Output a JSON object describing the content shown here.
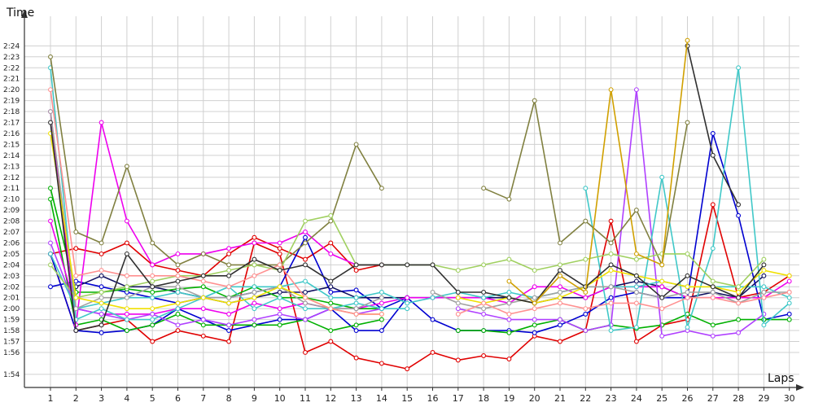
{
  "chart_data": {
    "type": "line",
    "ylabel": "Time",
    "xlabel": "Laps",
    "x": [
      1,
      2,
      3,
      4,
      5,
      6,
      7,
      8,
      9,
      10,
      11,
      12,
      13,
      14,
      15,
      16,
      17,
      18,
      19,
      20,
      21,
      22,
      23,
      24,
      25,
      26,
      27,
      28,
      29,
      30
    ],
    "x_tick_labels": [
      "1",
      "2",
      "3",
      "4",
      "5",
      "6",
      "7",
      "8",
      "9",
      "10",
      "11",
      "12",
      "13",
      "14",
      "15",
      "16",
      "17",
      "18",
      "19",
      "20",
      "21",
      "22",
      "23",
      "24",
      "25",
      "26",
      "27",
      "28",
      "29",
      "30"
    ],
    "y_tick_labels": [
      "1:54",
      "1:56",
      "1:57",
      "1:58",
      "1:59",
      "2:00",
      "2:01",
      "2:02",
      "2:03",
      "2:04",
      "2:05",
      "2:06",
      "2:07",
      "2:08",
      "2:09",
      "2:10",
      "2:11",
      "2:12",
      "2:13",
      "2:14",
      "2:15",
      "2:16",
      "2:17",
      "2:18",
      "2:19",
      "2:20",
      "2:21",
      "2:22",
      "2:23",
      "2:24"
    ],
    "y_unit": "seconds",
    "ylim": [
      113.2,
      146
    ],
    "grid": true,
    "legend": "none",
    "series": [
      {
        "color": "#e00000",
        "values": [
          125,
          118,
          118.5,
          119,
          117,
          118,
          117.5,
          117,
          126,
          125,
          116,
          117,
          115.5,
          115,
          114.5,
          116,
          115.3,
          115.7,
          115.4,
          117.5,
          117,
          118,
          128,
          117,
          118.5,
          119,
          129.5,
          121,
          121.5,
          123
        ]
      },
      {
        "color": "#e00000",
        "values": [
          125,
          125.5,
          125,
          126,
          124,
          123.5,
          123,
          125,
          126.5,
          125.5,
          124.5,
          126,
          123.5,
          124,
          null,
          null,
          null,
          null,
          null,
          null,
          null,
          null,
          null,
          null,
          null,
          null,
          null,
          null,
          null,
          null
        ]
      },
      {
        "color": "#0000d0",
        "values": [
          125,
          118,
          117.8,
          118,
          118.5,
          120,
          119,
          118,
          118.5,
          119,
          119,
          120,
          118,
          118,
          121,
          119,
          118,
          118,
          118,
          117.8,
          118.5,
          119.5,
          121,
          121.5,
          121,
          121,
          136,
          128.5,
          119,
          119.5
        ]
      },
      {
        "color": "#0000d0",
        "values": [
          122,
          122.5,
          122,
          121.5,
          121,
          120.5,
          121,
          121,
          121.5,
          122,
          126.5,
          121.5,
          121.7,
          120,
          121,
          null,
          null,
          null,
          null,
          null,
          null,
          null,
          null,
          null,
          null,
          null,
          null,
          null,
          null,
          null
        ]
      },
      {
        "color": "#101060",
        "values": [
          null,
          122,
          123,
          122,
          122,
          121.5,
          121,
          120.5,
          121,
          121.5,
          121.5,
          122,
          121,
          121,
          121,
          121,
          121,
          121,
          121,
          120.5,
          121,
          121,
          122,
          122.5,
          122,
          121,
          121.5,
          121,
          123,
          null
        ]
      },
      {
        "color": "#00b000",
        "values": [
          130,
          118.5,
          119,
          118,
          118.5,
          119.5,
          118.5,
          118.5,
          118.5,
          118.5,
          119,
          118,
          118.5,
          119,
          null,
          null,
          118,
          118,
          117.8,
          118.5,
          119,
          118,
          118.5,
          118.2,
          118.5,
          119.5,
          118.5,
          119,
          119,
          119
        ]
      },
      {
        "color": "#00b000",
        "values": [
          131,
          121.5,
          121.5,
          121.8,
          121.5,
          121.8,
          122,
          121,
          122,
          121,
          121,
          120.5,
          120,
          120,
          null,
          null,
          null,
          null,
          null,
          null,
          null,
          null,
          null,
          null,
          null,
          null,
          null,
          null,
          null,
          null
        ]
      },
      {
        "color": "#ee00ee",
        "values": [
          128,
          120,
          119.5,
          119.5,
          119.5,
          120,
          120,
          119.5,
          120.5,
          120,
          120.5,
          120,
          120,
          120.5,
          121,
          121,
          121,
          121,
          120.5,
          122,
          122,
          121,
          122,
          122,
          122,
          121,
          121,
          121,
          121,
          122.5
        ]
      },
      {
        "color": "#ee00ee",
        "values": [
          138,
          118.5,
          137,
          128,
          124,
          125,
          125,
          125.5,
          126,
          126,
          127,
          125,
          124,
          124,
          null,
          null,
          null,
          null,
          null,
          null,
          null,
          null,
          null,
          null,
          null,
          null,
          null,
          null,
          null,
          null
        ]
      },
      {
        "color": "#b040ff",
        "values": [
          126,
          120,
          119.5,
          119,
          119.5,
          118.5,
          119,
          118.5,
          119,
          119.5,
          119,
          120,
          119.5,
          120,
          null,
          null,
          120,
          119.5,
          119,
          119,
          119,
          118,
          118.5,
          140,
          117.5,
          118,
          117.5,
          117.8,
          119.5,
          null
        ]
      },
      {
        "color": "#40c8c8",
        "values": [
          142,
          119,
          120,
          119,
          119,
          120,
          121,
          122,
          120,
          121,
          120,
          120,
          120.5,
          120,
          120,
          null,
          null,
          null,
          null,
          null,
          null,
          131,
          118,
          118.3,
          132,
          118.3,
          125.5,
          142,
          118.5,
          120.5
        ]
      },
      {
        "color": "#40c8c8",
        "values": [
          125,
          120,
          120.5,
          121,
          121,
          121.5,
          121,
          122,
          122,
          122,
          122.5,
          121,
          121,
          121.5,
          120.5,
          121,
          121.5,
          121,
          121.5,
          121,
          121.5,
          122,
          122,
          122,
          122.5,
          122,
          122,
          122,
          122,
          121
        ]
      },
      {
        "color": "#808040",
        "values": [
          143,
          127,
          126,
          133,
          126,
          124,
          125,
          124,
          124,
          124,
          126,
          128,
          135,
          131,
          null,
          null,
          null,
          null,
          null,
          null,
          null,
          null,
          null,
          null,
          null,
          null,
          null,
          null,
          null,
          null
        ]
      },
      {
        "color": "#808040",
        "values": [
          null,
          null,
          null,
          null,
          null,
          null,
          null,
          null,
          null,
          null,
          null,
          null,
          null,
          null,
          null,
          null,
          null,
          131,
          130,
          139,
          126,
          128,
          126,
          129,
          124,
          137,
          null,
          null,
          null,
          null
        ]
      },
      {
        "color": "#a0a0a0",
        "values": [
          138,
          120,
          121,
          121,
          122,
          122,
          121,
          121,
          121.5,
          122,
          120.5,
          120,
          120,
          121,
          null,
          null,
          null,
          null,
          null,
          null,
          null,
          null,
          null,
          null,
          null,
          null,
          null,
          null,
          null,
          null
        ]
      },
      {
        "color": "#a0a0a0",
        "values": [
          null,
          null,
          null,
          null,
          null,
          null,
          null,
          null,
          null,
          null,
          null,
          null,
          null,
          null,
          null,
          121.5,
          120.5,
          120,
          120.5,
          121,
          121.5,
          122,
          122,
          121.5,
          121,
          121.5,
          121.5,
          120.5,
          121.5,
          121.5
        ]
      },
      {
        "color": "#a0d060",
        "values": [
          124,
          121,
          121.5,
          122,
          122.5,
          123,
          123,
          123.5,
          124,
          123.5,
          128,
          128.5,
          124,
          124,
          124,
          124,
          123.5,
          124,
          124.5,
          123.5,
          124,
          124.5,
          125,
          124.5,
          125,
          125,
          122.5,
          122,
          124.5,
          null
        ]
      },
      {
        "color": "#f0e000",
        "values": [
          136,
          121,
          120.5,
          120,
          120,
          120.5,
          121,
          120.5,
          121,
          122,
          121,
          120,
          119.5,
          119.5,
          null,
          null,
          null,
          null,
          null,
          null,
          null,
          null,
          null,
          null,
          null,
          null,
          null,
          null,
          null,
          null
        ]
      },
      {
        "color": "#f0e000",
        "values": [
          null,
          null,
          null,
          null,
          null,
          null,
          null,
          null,
          null,
          null,
          null,
          null,
          null,
          null,
          null,
          null,
          121,
          120.5,
          121,
          120.5,
          121,
          122,
          123.5,
          123,
          122.5,
          122,
          122,
          121.5,
          123.5,
          123
        ]
      },
      {
        "color": "#ff9090",
        "values": [
          140,
          123,
          123.5,
          123,
          123,
          123,
          122.5,
          122,
          123,
          124,
          121,
          120,
          119.5,
          119.5,
          null,
          null,
          119.5,
          120.5,
          119.5,
          120,
          120.5,
          120,
          120.5,
          120.5,
          120,
          121,
          121,
          120.5,
          121,
          121.5
        ]
      },
      {
        "color": "#303030",
        "values": [
          137,
          118,
          118.5,
          125,
          122,
          122.5,
          123,
          123,
          124.5,
          123.5,
          124,
          122.5,
          124,
          124,
          124,
          124,
          121.5,
          121.5,
          121,
          120.5,
          123.5,
          122,
          124,
          123,
          121,
          123,
          122,
          121,
          124,
          null
        ]
      },
      {
        "color": "#303030",
        "values": [
          null,
          null,
          null,
          null,
          null,
          null,
          null,
          null,
          null,
          null,
          null,
          null,
          null,
          null,
          null,
          null,
          null,
          null,
          null,
          null,
          null,
          null,
          null,
          null,
          null,
          144,
          134,
          129.5,
          null,
          null
        ]
      },
      {
        "color": "#d0a000",
        "values": [
          null,
          null,
          null,
          null,
          null,
          null,
          null,
          null,
          null,
          null,
          null,
          null,
          null,
          null,
          null,
          null,
          null,
          null,
          122.5,
          120.5,
          123,
          121.5,
          140,
          125,
          124,
          144.5,
          null,
          null,
          null,
          null
        ]
      }
    ]
  }
}
